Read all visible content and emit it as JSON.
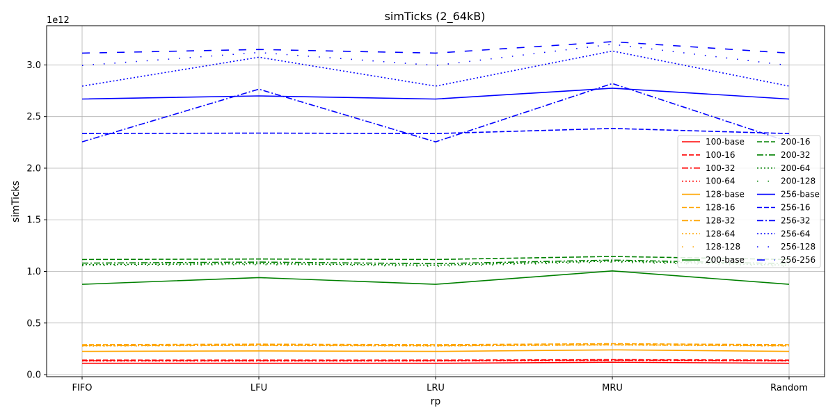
{
  "chart_data": {
    "type": "line",
    "title": "simTicks (2_64kB)",
    "xlabel": "rp",
    "ylabel": "simTicks",
    "y_offset_label": "1e12",
    "y_scale_factor": 1000000000000.0,
    "categories": [
      "FIFO",
      "LFU",
      "LRU",
      "MRU",
      "Random"
    ],
    "ylim": [
      -0.02,
      3.38
    ],
    "yticks": [
      0.0,
      0.5,
      1.0,
      1.5,
      2.0,
      2.5,
      3.0
    ],
    "ytick_labels": [
      "0.0",
      "0.5",
      "1.0",
      "1.5",
      "2.0",
      "2.5",
      "3.0"
    ],
    "grid": true,
    "legend_position": "right",
    "series": [
      {
        "name": "100-base",
        "color": "#ff0000",
        "style": "solid",
        "values": [
          0.11,
          0.11,
          0.11,
          0.12,
          0.11
        ]
      },
      {
        "name": "100-16",
        "color": "#ff0000",
        "style": "dashed",
        "values": [
          0.14,
          0.14,
          0.14,
          0.145,
          0.14
        ]
      },
      {
        "name": "100-32",
        "color": "#ff0000",
        "style": "dashdot",
        "values": [
          0.135,
          0.135,
          0.135,
          0.14,
          0.135
        ]
      },
      {
        "name": "100-64",
        "color": "#ff0000",
        "style": "dotted",
        "values": [
          0.132,
          0.132,
          0.132,
          0.138,
          0.132
        ]
      },
      {
        "name": "128-base",
        "color": "#ffa500",
        "style": "solid",
        "values": [
          0.225,
          0.23,
          0.225,
          0.24,
          0.225
        ]
      },
      {
        "name": "128-16",
        "color": "#ffa500",
        "style": "dashed",
        "values": [
          0.29,
          0.295,
          0.29,
          0.3,
          0.29
        ]
      },
      {
        "name": "128-32",
        "color": "#ffa500",
        "style": "dashdot",
        "values": [
          0.28,
          0.285,
          0.28,
          0.29,
          0.28
        ]
      },
      {
        "name": "128-64",
        "color": "#ffa500",
        "style": "dotted",
        "values": [
          0.278,
          0.283,
          0.278,
          0.288,
          0.278
        ]
      },
      {
        "name": "128-128",
        "color": "#ffa500",
        "style": "loosedot",
        "values": [
          0.276,
          0.281,
          0.276,
          0.286,
          0.276
        ]
      },
      {
        "name": "200-base",
        "color": "#008000",
        "style": "solid",
        "values": [
          0.875,
          0.94,
          0.875,
          1.005,
          0.875
        ]
      },
      {
        "name": "200-16",
        "color": "#008000",
        "style": "dashed",
        "values": [
          1.115,
          1.12,
          1.115,
          1.145,
          1.115
        ]
      },
      {
        "name": "200-32",
        "color": "#008000",
        "style": "dashdot",
        "values": [
          1.08,
          1.09,
          1.075,
          1.11,
          1.075
        ]
      },
      {
        "name": "200-64",
        "color": "#008000",
        "style": "dotted",
        "values": [
          1.065,
          1.075,
          1.06,
          1.1,
          1.06
        ]
      },
      {
        "name": "200-128",
        "color": "#008000",
        "style": "loosedot",
        "values": [
          1.055,
          1.065,
          1.05,
          1.09,
          1.05
        ]
      },
      {
        "name": "256-base",
        "color": "#0000ff",
        "style": "solid",
        "values": [
          2.67,
          2.7,
          2.67,
          2.775,
          2.67
        ]
      },
      {
        "name": "256-16",
        "color": "#0000ff",
        "style": "dashed",
        "values": [
          2.335,
          2.34,
          2.335,
          2.385,
          2.335
        ]
      },
      {
        "name": "256-32",
        "color": "#0000ff",
        "style": "dashdot",
        "values": [
          2.255,
          2.765,
          2.255,
          2.82,
          2.255
        ]
      },
      {
        "name": "256-64",
        "color": "#0000ff",
        "style": "dotted",
        "values": [
          2.795,
          3.075,
          2.795,
          3.135,
          2.795
        ]
      },
      {
        "name": "256-128",
        "color": "#0000ff",
        "style": "loosedot",
        "values": [
          2.995,
          3.12,
          2.995,
          3.2,
          2.995
        ]
      },
      {
        "name": "256-256",
        "color": "#0000ff",
        "style": "loosedash",
        "values": [
          3.115,
          3.15,
          3.115,
          3.225,
          3.115
        ]
      }
    ]
  }
}
